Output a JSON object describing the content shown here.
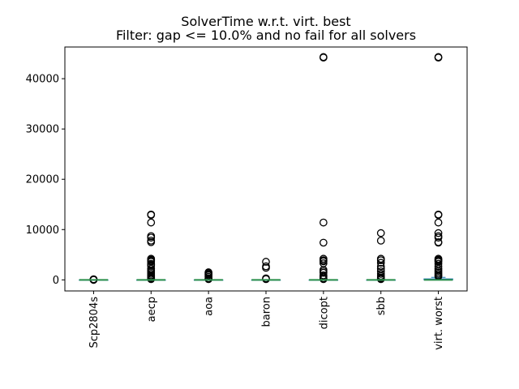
{
  "chart_data": {
    "type": "box",
    "title": "SolverTime w.r.t. virt. best",
    "subtitle": "Filter: gap <= 10.0% and no fail for all solvers",
    "xlabel": "",
    "ylabel": "",
    "categories": [
      "Scp2804s",
      "aecp",
      "aoa",
      "baron",
      "dicopt",
      "sbb",
      "virt. worst"
    ],
    "ylim": [
      -2200,
      46300
    ],
    "yticks": [
      0,
      10000,
      20000,
      30000,
      40000
    ],
    "ytick_labels": [
      "0",
      "10000",
      "20000",
      "30000",
      "40000"
    ],
    "median_color": "#2a8f4a",
    "series": [
      {
        "category": "Scp2804s",
        "median": 0,
        "q1": 0,
        "q3": 0,
        "whisker_low": 0,
        "whisker_high": 0,
        "outliers": [
          0,
          30,
          60,
          90,
          120
        ]
      },
      {
        "category": "aecp",
        "median": 0,
        "q1": 0,
        "q3": 0,
        "whisker_low": 0,
        "whisker_high": 0,
        "outliers": [
          13000,
          12900,
          11400,
          8700,
          8400,
          7800,
          7500,
          4200,
          4000,
          3800,
          3600,
          3200,
          3000,
          2800,
          2200,
          1800,
          1500,
          1200,
          900,
          700,
          500,
          300,
          150
        ]
      },
      {
        "category": "aoa",
        "median": 0,
        "q1": 0,
        "q3": 0,
        "whisker_low": 0,
        "whisker_high": 0,
        "outliers": [
          1500,
          1300,
          1100,
          900,
          600,
          300,
          150
        ]
      },
      {
        "category": "baron",
        "median": 0,
        "q1": 0,
        "q3": 0,
        "whisker_low": 0,
        "whisker_high": 0,
        "outliers": [
          3600,
          2700,
          2400,
          300,
          150
        ]
      },
      {
        "category": "dicopt",
        "median": 0,
        "q1": 0,
        "q3": 0,
        "whisker_low": 0,
        "whisker_high": 0,
        "outliers": [
          44300,
          44200,
          11400,
          7400,
          4200,
          3900,
          3700,
          3300,
          2000,
          1700,
          1400,
          900,
          600,
          300,
          150
        ]
      },
      {
        "category": "sbb",
        "median": 0,
        "q1": 0,
        "q3": 0,
        "whisker_low": 0,
        "whisker_high": 0,
        "outliers": [
          9300,
          7800,
          4200,
          3900,
          3400,
          2700,
          2200,
          1700,
          1200,
          800,
          500,
          300,
          150
        ]
      },
      {
        "category": "virt. worst",
        "median": 0,
        "q1": 0,
        "q3": 200,
        "whisker_low": 0,
        "whisker_high": 500,
        "outliers": [
          44300,
          44200,
          13000,
          12900,
          11400,
          9300,
          8700,
          8400,
          7500,
          7400,
          4200,
          4000,
          3800,
          3600,
          3200,
          2700,
          2200,
          1800,
          1500,
          1200,
          900,
          700
        ]
      }
    ]
  }
}
